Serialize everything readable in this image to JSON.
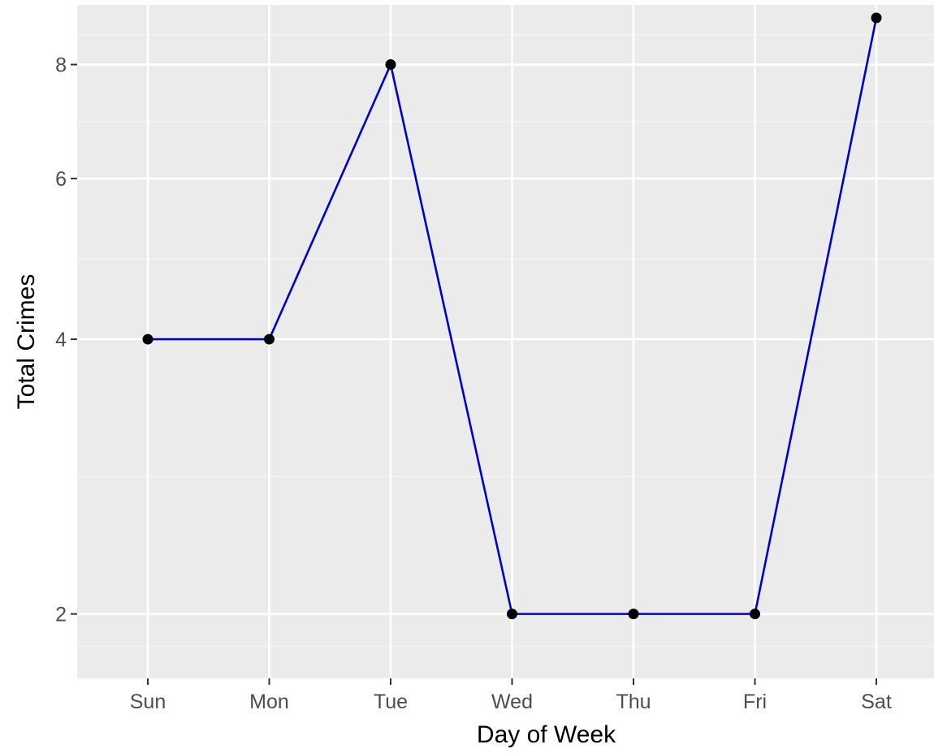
{
  "chart_data": {
    "type": "line",
    "title": "",
    "xlabel": "Day of Week",
    "ylabel": "Total Crimes",
    "categories": [
      "Sun",
      "Mon",
      "Tue",
      "Wed",
      "Thu",
      "Fri",
      "Sat"
    ],
    "series": [
      {
        "values": [
          4,
          4,
          8,
          2,
          2,
          2,
          9
        ]
      }
    ],
    "y_ticks": [
      2,
      4,
      6,
      8
    ],
    "y_tick_labels": [
      "2",
      "4",
      "6",
      "8"
    ],
    "ylim": [
      1.7,
      9.3
    ],
    "y_scale": "log",
    "grid": true,
    "legend": "none",
    "colors": {
      "panel_background": "#ebebeb",
      "grid_major": "#ffffff",
      "grid_minor": "#f5f5f5",
      "line": "#0000cd",
      "point": "#000000",
      "tick_label": "#4d4d4d",
      "axis_title": "#000000"
    }
  }
}
